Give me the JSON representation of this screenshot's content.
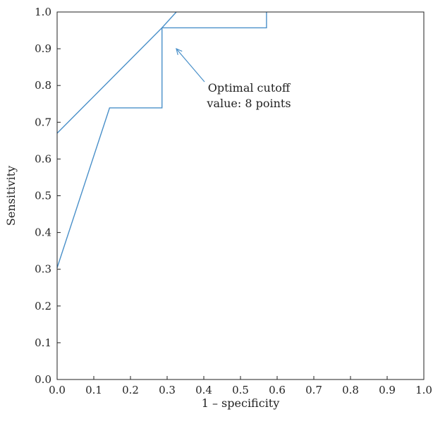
{
  "chart_data": {
    "type": "line",
    "title": "",
    "xlabel": "1 – specificity",
    "ylabel": "Sensitivity",
    "xlim": [
      0.0,
      1.0
    ],
    "ylim": [
      0.0,
      1.0
    ],
    "xticks": [
      "0.0",
      "0.1",
      "0.2",
      "0.3",
      "0.4",
      "0.5",
      "0.6",
      "0.7",
      "0.8",
      "0.9",
      "1.0"
    ],
    "yticks": [
      "0.0",
      "0.1",
      "0.2",
      "0.3",
      "0.4",
      "0.5",
      "0.6",
      "0.7",
      "0.8",
      "0.9",
      "1.0"
    ],
    "grid": false,
    "series": [
      {
        "x": [
          0.0,
          0.143,
          0.143,
          0.286,
          0.286,
          0.571,
          0.571
        ],
        "y": [
          0.304,
          0.739,
          0.739,
          0.739,
          0.957,
          0.957,
          1.0
        ]
      },
      {
        "x": [
          0.0,
          0.286,
          0.325
        ],
        "y": [
          0.67,
          0.957,
          1.0
        ]
      }
    ],
    "annotations": [
      {
        "lines": [
          "Optimal cutoff",
          "value: 8 points"
        ],
        "arrow_to": [
          0.325,
          0.9
        ]
      }
    ],
    "line_color": "#4a90c9"
  }
}
